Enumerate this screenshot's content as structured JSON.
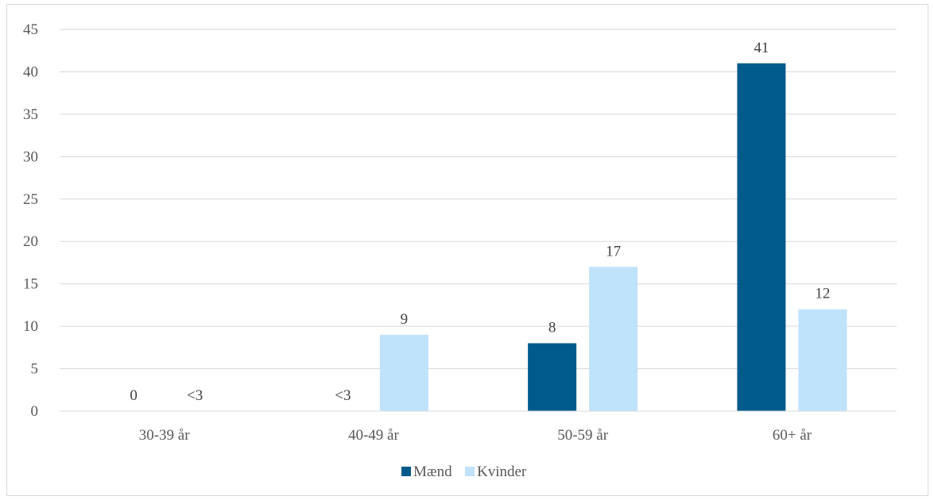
{
  "chart_data": {
    "type": "bar",
    "categories": [
      "30-39 år",
      "40-49 år",
      "50-59 år",
      "60+ år"
    ],
    "series": [
      {
        "name": "Mænd",
        "values": [
          0,
          null,
          8,
          41
        ],
        "labels": [
          "0",
          "<3",
          "8",
          "41"
        ],
        "color": "#005a8c"
      },
      {
        "name": "Kvinder",
        "values": [
          null,
          9,
          17,
          12
        ],
        "labels": [
          "<3",
          "9",
          "17",
          "12"
        ],
        "color": "#bfe3fb"
      }
    ],
    "ylim": [
      0,
      45
    ],
    "yticks": [
      0,
      5,
      10,
      15,
      20,
      25,
      30,
      35,
      40,
      45
    ],
    "grid": true,
    "legend_position": "bottom"
  }
}
